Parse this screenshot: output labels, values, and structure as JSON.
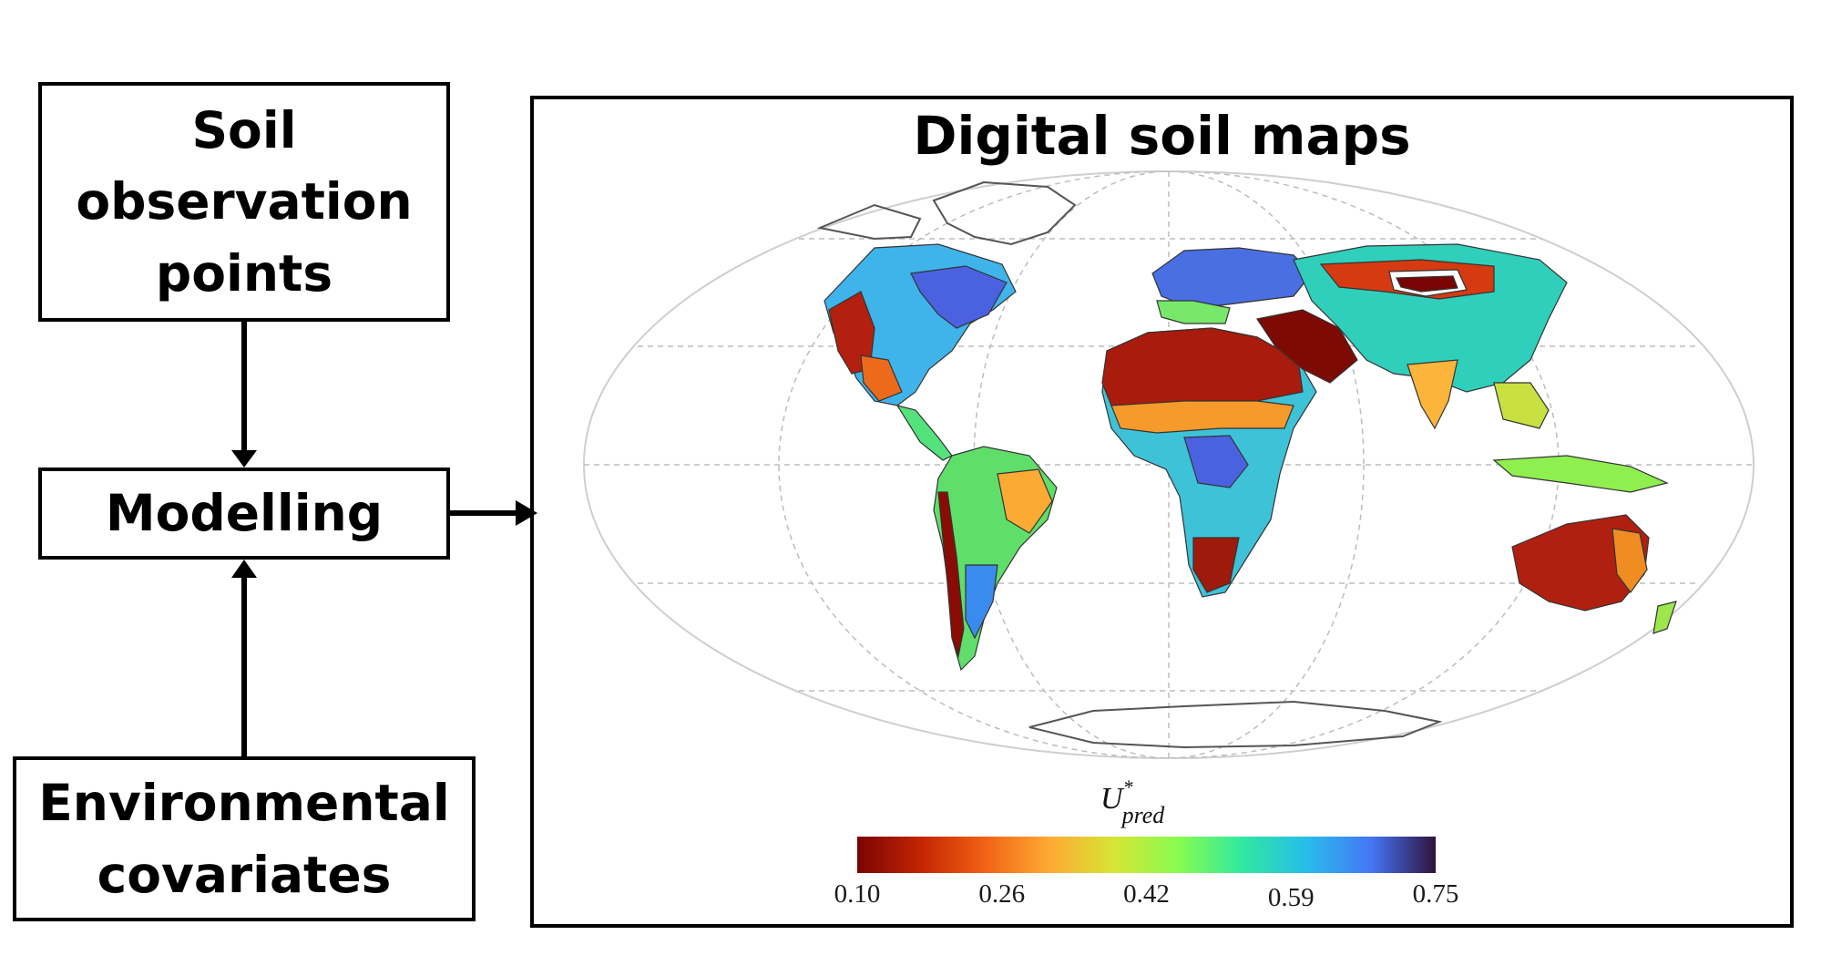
{
  "flow": {
    "soil_box": {
      "lines": [
        "Soil",
        "observation",
        "points"
      ]
    },
    "model_box": {
      "label": "Modelling"
    },
    "env_box": {
      "lines": [
        "Environmental",
        "covariates"
      ]
    }
  },
  "map_panel": {
    "title": "Digital soil maps",
    "colorbar": {
      "label_main": "U",
      "label_sup": "*",
      "label_sub": "pred",
      "ticks": [
        "0.10",
        "0.26",
        "0.42",
        "0.59",
        "0.75"
      ],
      "colors": [
        "#7a0403",
        "#c42503",
        "#f36315",
        "#fdaa33",
        "#d6e535",
        "#87fc4f",
        "#2fe8a0",
        "#28bceb",
        "#4576f6",
        "#30123b"
      ]
    }
  }
}
